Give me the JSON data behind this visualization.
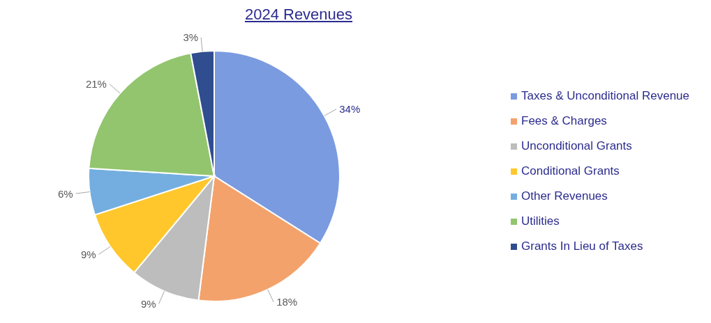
{
  "chart_data": {
    "type": "pie",
    "title": "2024 Revenues",
    "categories": [
      "Taxes & Unconditional Revenue",
      "Fees & Charges",
      "Unconditional Grants",
      "Conditional Grants",
      "Other Revenues",
      "Utilities",
      "Grants In Lieu of Taxes"
    ],
    "values": [
      34,
      18,
      9,
      9,
      6,
      21,
      3
    ],
    "value_labels": [
      "34%",
      "18%",
      "9%",
      "9%",
      "6%",
      "21%",
      "3%"
    ],
    "colors": [
      "#7b9be0",
      "#f3a26c",
      "#bdbdbd",
      "#ffc72c",
      "#74aee0",
      "#92c56e",
      "#2f4d8f"
    ],
    "legend": "right"
  }
}
